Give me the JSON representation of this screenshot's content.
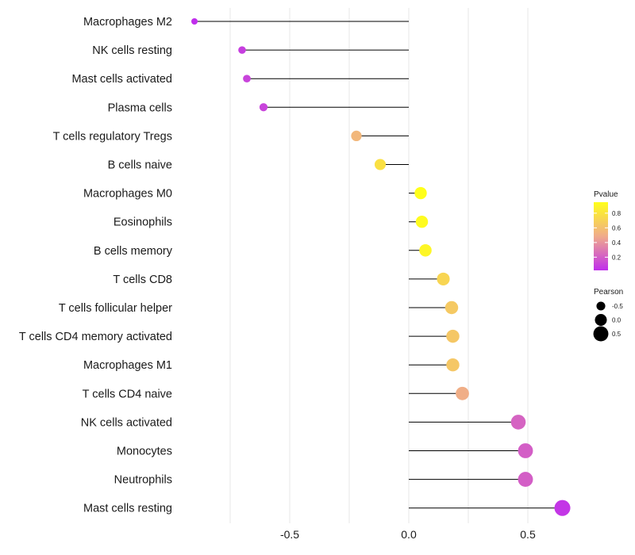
{
  "chart_data": {
    "type": "lollipop",
    "categories": [
      "Macrophages M2",
      "NK cells resting",
      "Mast cells activated",
      "Plasma cells",
      "T cells regulatory  Tregs",
      "B cells naive",
      "Macrophages M0",
      "Eosinophils",
      "B cells memory",
      "T cells CD8",
      "T cells follicular helper",
      "T cells CD4 memory activated",
      "Macrophages M1",
      "T cells CD4 naive",
      "NK cells activated",
      "Monocytes",
      "Neutrophils",
      "Mast cells resting"
    ],
    "pearson": [
      -0.9,
      -0.7,
      -0.68,
      -0.61,
      -0.22,
      -0.12,
      0.05,
      0.055,
      0.07,
      0.145,
      0.18,
      0.185,
      0.185,
      0.225,
      0.46,
      0.49,
      0.49,
      0.645
    ],
    "pvalue": [
      0.01,
      0.08,
      0.1,
      0.1,
      0.55,
      0.78,
      0.95,
      0.93,
      0.9,
      0.72,
      0.65,
      0.64,
      0.64,
      0.5,
      0.22,
      0.2,
      0.2,
      0.05
    ],
    "xlim": [
      -0.98,
      0.73
    ],
    "xticks": [
      -0.5,
      0.0,
      0.5
    ],
    "xtick_labels": [
      "-0.5",
      "0.0",
      "0.5"
    ],
    "xlabel": "",
    "ylabel": "",
    "grid": true,
    "legend_color": {
      "title": "Pvalue",
      "range": [
        0.02,
        0.95
      ],
      "ticks": [
        0.8,
        0.6,
        0.4,
        0.2
      ],
      "tick_labels": [
        "0.8",
        "0.6",
        "0.4",
        "0.2"
      ],
      "color_low": "#c02eec",
      "color_mid": "#f0ab8b",
      "color_high": "#ffff1a"
    },
    "legend_size": {
      "title": "Pearson",
      "values": [
        -0.5,
        0.0,
        0.5
      ],
      "labels": [
        "-0.5",
        "0.0",
        "0.5"
      ]
    },
    "line_color": "#000000",
    "grid_color": "#ebebeb"
  }
}
